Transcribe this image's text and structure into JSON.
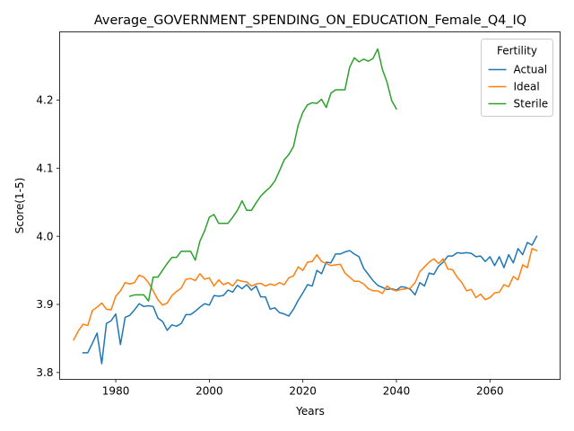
{
  "chart_data": {
    "type": "line",
    "title": "Average_GOVERNMENT_SPENDING_ON_EDUCATION_Female_Q4_IQ",
    "xlabel": "Years",
    "ylabel": "Score(1-5)",
    "xlim": [
      1968,
      2075
    ],
    "ylim": [
      3.79,
      4.3
    ],
    "xticks": [
      1980,
      2000,
      2020,
      2040,
      2060
    ],
    "yticks": [
      3.8,
      3.9,
      4.0,
      4.1,
      4.2
    ],
    "grid": false,
    "legend": {
      "title": "Fertility",
      "placement": "top-right"
    },
    "series": [
      {
        "name": "Actual",
        "color": "#1f77b4",
        "x": [
          1973,
          1974,
          1975,
          1976,
          1977,
          1978,
          1979,
          1980,
          1981,
          1982,
          1983,
          1984,
          1985,
          1986,
          1987,
          1988,
          1989,
          1990,
          1991,
          1992,
          1993,
          1994,
          1995,
          1996,
          1997,
          1998,
          1999,
          2000,
          2001,
          2002,
          2003,
          2004,
          2005,
          2006,
          2007,
          2008,
          2009,
          2010,
          2011,
          2012,
          2013,
          2014,
          2015,
          2016,
          2017,
          2018,
          2019,
          2020,
          2021,
          2022,
          2023,
          2024,
          2025,
          2026,
          2027,
          2028,
          2029,
          2030,
          2031,
          2032,
          2033,
          2034,
          2035,
          2036,
          2037,
          2038,
          2039,
          2040,
          2041,
          2042,
          2043,
          2044,
          2045,
          2046,
          2047,
          2048,
          2049,
          2050,
          2051,
          2052,
          2053,
          2054,
          2055,
          2056,
          2057,
          2058,
          2059,
          2060,
          2061,
          2062,
          2063,
          2064,
          2065,
          2066,
          2067,
          2068,
          2069,
          2070
        ],
        "y": [
          3.829,
          3.829,
          3.843,
          3.858,
          3.813,
          3.872,
          3.876,
          3.886,
          3.841,
          3.881,
          3.884,
          3.892,
          3.901,
          3.897,
          3.898,
          3.897,
          3.88,
          3.875,
          3.862,
          3.87,
          3.868,
          3.872,
          3.885,
          3.885,
          3.89,
          3.896,
          3.901,
          3.899,
          3.913,
          3.912,
          3.913,
          3.921,
          3.918,
          3.928,
          3.923,
          3.929,
          3.921,
          3.927,
          3.911,
          3.911,
          3.893,
          3.895,
          3.888,
          3.886,
          3.883,
          3.893,
          3.906,
          3.917,
          3.929,
          3.927,
          3.95,
          3.945,
          3.962,
          3.961,
          3.974,
          3.974,
          3.977,
          3.979,
          3.974,
          3.97,
          3.953,
          3.944,
          3.935,
          3.928,
          3.925,
          3.922,
          3.923,
          3.921,
          3.926,
          3.925,
          3.922,
          3.914,
          3.932,
          3.927,
          3.946,
          3.944,
          3.956,
          3.962,
          3.971,
          3.971,
          3.976,
          3.975,
          3.976,
          3.975,
          3.97,
          3.971,
          3.963,
          3.97,
          3.957,
          3.97,
          3.954,
          3.973,
          3.961,
          3.982,
          3.973,
          3.991,
          3.987,
          4.0
        ]
      },
      {
        "name": "Ideal",
        "color": "#ff7f0e",
        "x": [
          1971,
          1972,
          1973,
          1974,
          1975,
          1976,
          1977,
          1978,
          1979,
          1980,
          1981,
          1982,
          1983,
          1984,
          1985,
          1986,
          1987,
          1988,
          1989,
          1990,
          1991,
          1992,
          1993,
          1994,
          1995,
          1996,
          1997,
          1998,
          1999,
          2000,
          2001,
          2002,
          2003,
          2004,
          2005,
          2006,
          2007,
          2008,
          2009,
          2010,
          2011,
          2012,
          2013,
          2014,
          2015,
          2016,
          2017,
          2018,
          2019,
          2020,
          2021,
          2022,
          2023,
          2024,
          2025,
          2026,
          2027,
          2028,
          2029,
          2030,
          2031,
          2032,
          2033,
          2034,
          2035,
          2036,
          2037,
          2038,
          2039,
          2040,
          2041,
          2042,
          2043,
          2044,
          2045,
          2046,
          2047,
          2048,
          2049,
          2050,
          2051,
          2052,
          2053,
          2054,
          2055,
          2056,
          2057,
          2058,
          2059,
          2060,
          2061,
          2062,
          2063,
          2064,
          2065,
          2066,
          2067,
          2068,
          2069,
          2070
        ],
        "y": [
          3.848,
          3.861,
          3.871,
          3.869,
          3.891,
          3.896,
          3.902,
          3.893,
          3.892,
          3.912,
          3.92,
          3.932,
          3.93,
          3.932,
          3.943,
          3.94,
          3.932,
          3.92,
          3.907,
          3.899,
          3.902,
          3.913,
          3.919,
          3.924,
          3.937,
          3.938,
          3.935,
          3.945,
          3.937,
          3.939,
          3.927,
          3.936,
          3.929,
          3.932,
          3.927,
          3.936,
          3.934,
          3.933,
          3.927,
          3.93,
          3.931,
          3.927,
          3.93,
          3.928,
          3.932,
          3.929,
          3.939,
          3.942,
          3.955,
          3.95,
          3.962,
          3.963,
          3.973,
          3.963,
          3.96,
          3.957,
          3.958,
          3.959,
          3.946,
          3.94,
          3.934,
          3.934,
          3.93,
          3.923,
          3.92,
          3.92,
          3.916,
          3.927,
          3.922,
          3.92,
          3.922,
          3.923,
          3.924,
          3.932,
          3.948,
          3.955,
          3.962,
          3.967,
          3.96,
          3.967,
          3.952,
          3.951,
          3.94,
          3.932,
          3.92,
          3.922,
          3.91,
          3.915,
          3.907,
          3.91,
          3.917,
          3.918,
          3.929,
          3.926,
          3.941,
          3.936,
          3.958,
          3.954,
          3.982,
          3.979
        ]
      },
      {
        "name": "Sterile",
        "color": "#2ca02c",
        "x": [
          1983,
          1984,
          1985,
          1986,
          1987,
          1988,
          1989,
          1990,
          1991,
          1992,
          1993,
          1994,
          1995,
          1996,
          1997,
          1998,
          1999,
          2000,
          2001,
          2002,
          2003,
          2004,
          2005,
          2006,
          2007,
          2008,
          2009,
          2010,
          2011,
          2012,
          2013,
          2014,
          2015,
          2016,
          2017,
          2018,
          2019,
          2020,
          2021,
          2022,
          2023,
          2024,
          2025,
          2026,
          2027,
          2028,
          2029,
          2030,
          2031,
          2032,
          2033,
          2034,
          2035,
          2036,
          2037,
          2038,
          2039,
          2040
        ],
        "y": [
          3.912,
          3.914,
          3.914,
          3.914,
          3.905,
          3.94,
          3.94,
          3.95,
          3.96,
          3.969,
          3.969,
          3.978,
          3.978,
          3.978,
          3.965,
          3.993,
          4.008,
          4.028,
          4.032,
          4.019,
          4.019,
          4.019,
          4.028,
          4.038,
          4.052,
          4.038,
          4.038,
          4.049,
          4.059,
          4.066,
          4.072,
          4.081,
          4.096,
          4.112,
          4.12,
          4.132,
          4.163,
          4.182,
          4.193,
          4.196,
          4.195,
          4.201,
          4.189,
          4.21,
          4.215,
          4.215,
          4.215,
          4.248,
          4.262,
          4.256,
          4.26,
          4.257,
          4.261,
          4.275,
          4.245,
          4.226,
          4.199,
          4.187
        ]
      }
    ]
  }
}
